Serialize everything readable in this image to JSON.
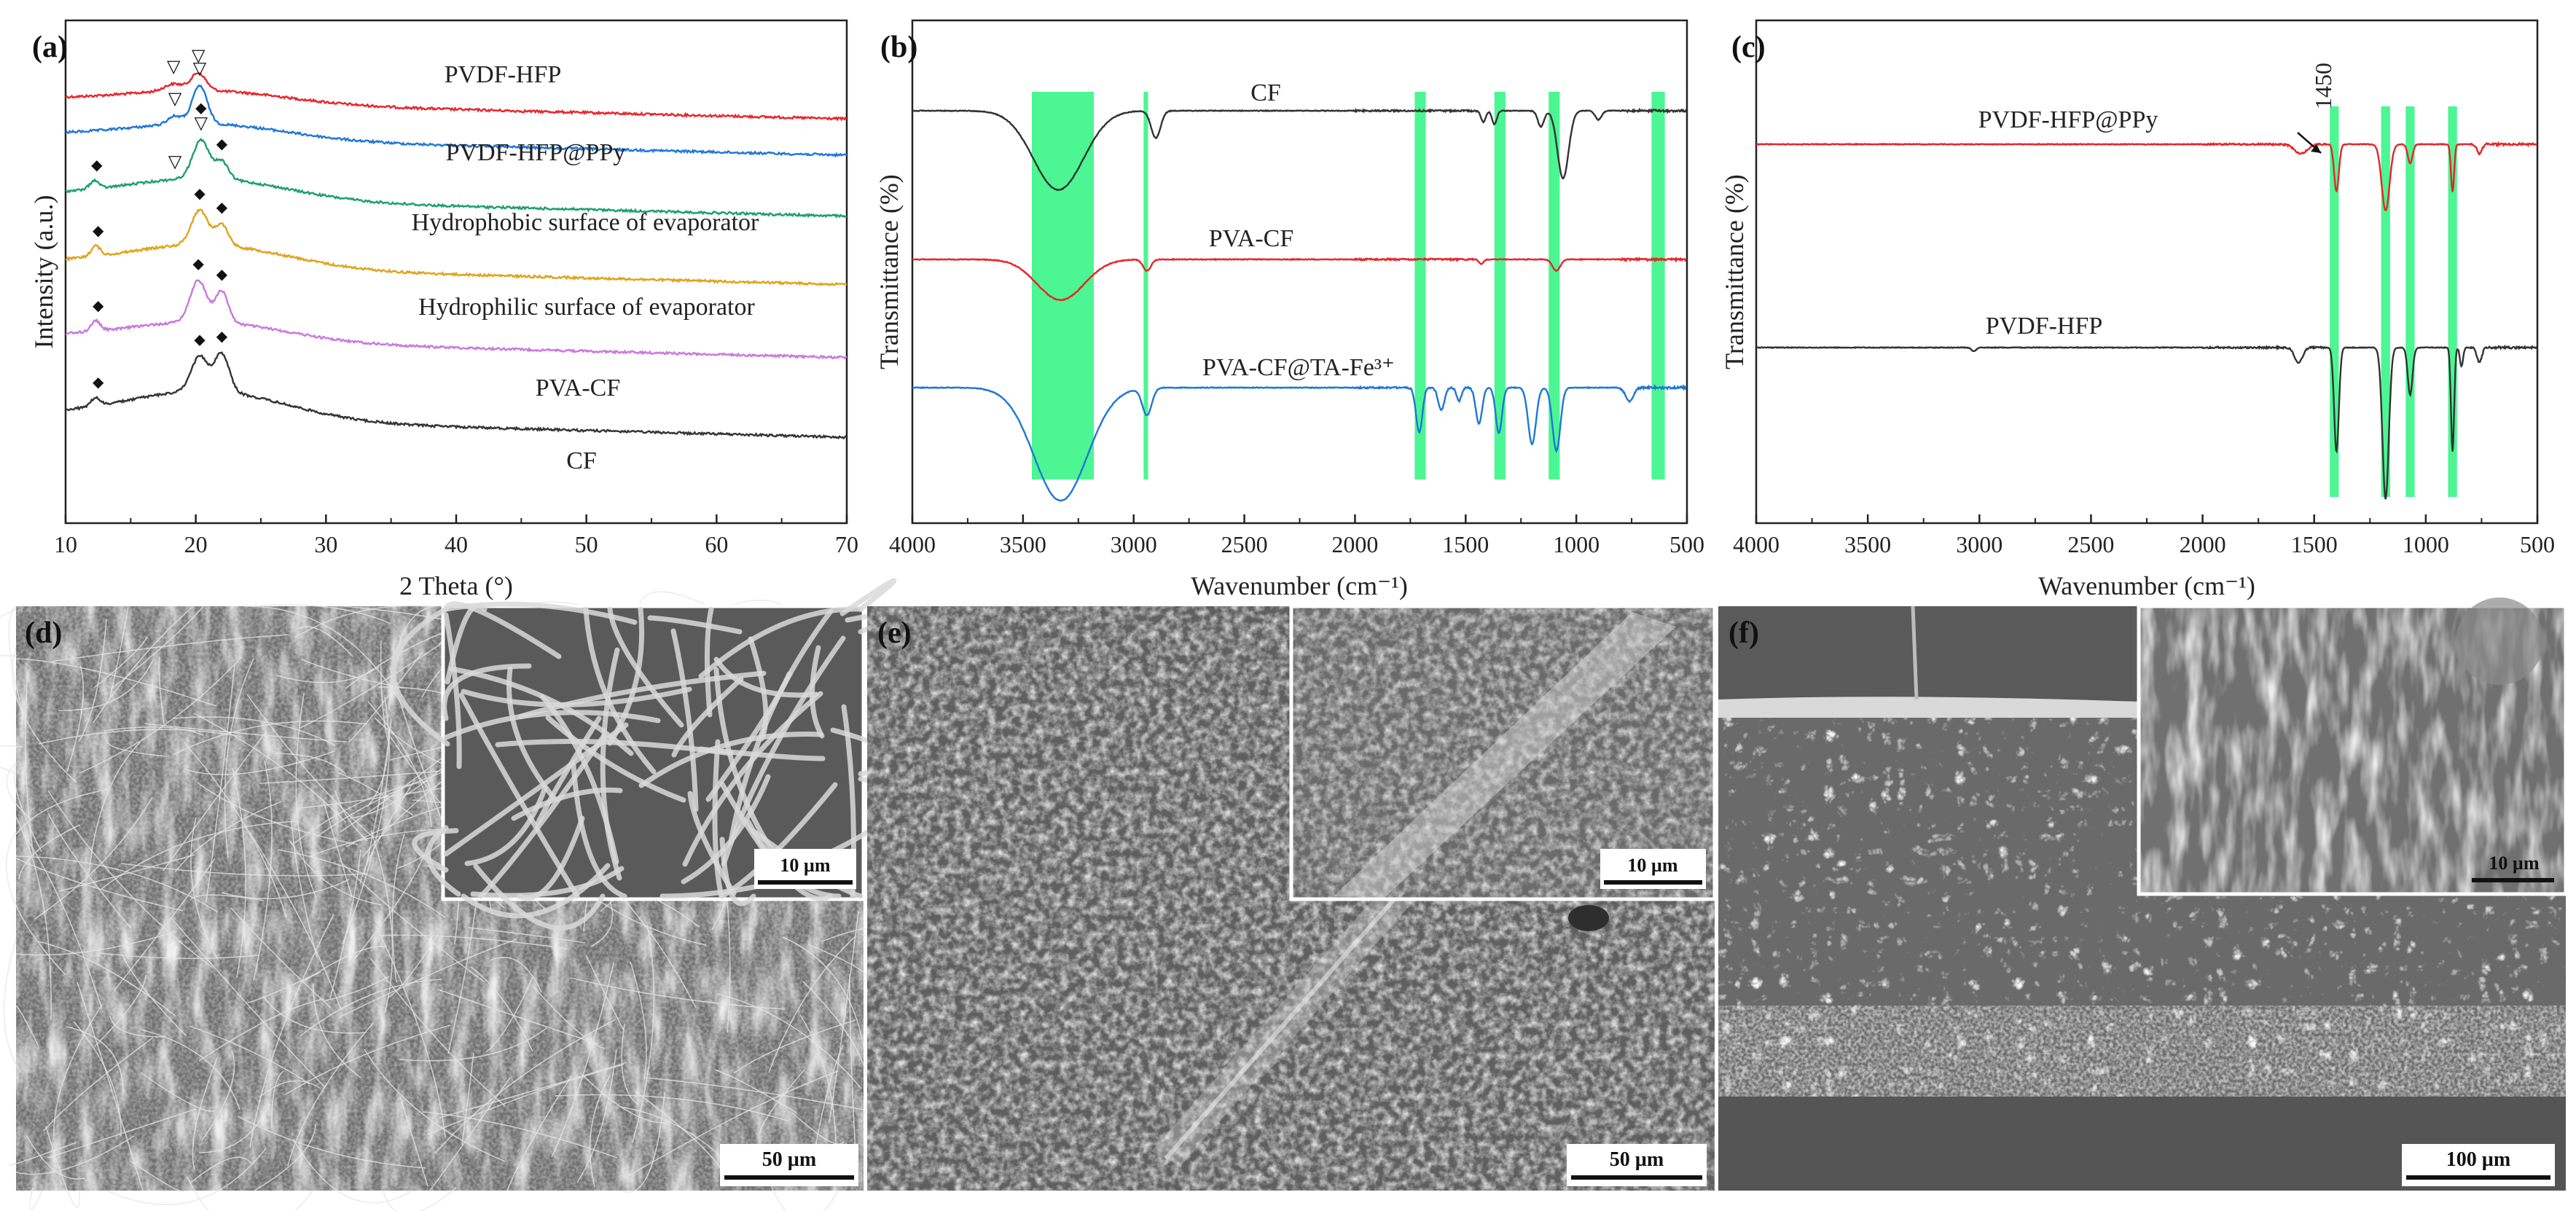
{
  "figure": {
    "colors": {
      "red": "#e8242a",
      "blue": "#1f77d6",
      "green": "#1aa06a",
      "orange": "#e0a21a",
      "violet": "#c978dd",
      "black": "#333333",
      "highlight": "#3df58a"
    }
  },
  "chart_data": [
    {
      "panel": "(a)",
      "type": "line",
      "xlabel": "2 Theta (°)",
      "ylabel": "Intensity (a.u.)",
      "xlim": [
        10,
        70
      ],
      "xticks": [
        "10",
        "20",
        "30",
        "40",
        "50",
        "60",
        "70"
      ],
      "grid": false,
      "series": [
        {
          "name": "PVDF-HFP",
          "color": "#e8242a",
          "offset": 5.0,
          "peaks": [
            [
              18.3,
              0.1,
              1.0
            ],
            [
              20.2,
              0.25,
              0.8
            ]
          ],
          "hump": 0.33,
          "tail": 0.0,
          "markers": [
            {
              "symbol": "▽",
              "x": 18.3
            },
            {
              "symbol": "▽",
              "x": 20.2
            }
          ]
        },
        {
          "name": "PVDF-HFP@PPy",
          "color": "#1f77d6",
          "offset": 4.0,
          "peaks": [
            [
              18.4,
              0.12,
              0.8
            ],
            [
              20.3,
              0.55,
              0.8
            ]
          ],
          "hump": 0.4,
          "tail": 0.0,
          "markers": [
            {
              "symbol": "▽",
              "x": 18.4
            },
            {
              "symbol": "▽",
              "x": 20.3
            }
          ]
        },
        {
          "name": "Hydrophobic surface of evaporator",
          "color": "#1aa06a",
          "offset": 3.0,
          "peaks": [
            [
              12.2,
              0.12,
              0.5
            ],
            [
              20.4,
              0.55,
              0.9
            ],
            [
              22.0,
              0.25,
              0.7
            ]
          ],
          "hump": 0.55,
          "tail": 0.0,
          "markers": [
            {
              "symbol": "◆",
              "x": 12.4
            },
            {
              "symbol": "▽",
              "x": 18.4
            },
            {
              "symbol": "▽",
              "x": 20.4
            },
            {
              "symbol": "◆",
              "x": 20.4
            },
            {
              "symbol": "◆",
              "x": 22.0
            }
          ]
        },
        {
          "name": "Hydrophilic surface of evaporator",
          "color": "#e0a21a",
          "offset": 2.0,
          "peaks": [
            [
              12.3,
              0.15,
              0.5
            ],
            [
              20.3,
              0.5,
              0.9
            ],
            [
              22.0,
              0.3,
              0.7
            ]
          ],
          "hump": 0.6,
          "tail": 0.0,
          "markers": [
            {
              "symbol": "◆",
              "x": 12.5
            },
            {
              "symbol": "◆",
              "x": 20.3
            },
            {
              "symbol": "◆",
              "x": 22.0
            }
          ]
        },
        {
          "name": "PVA-CF",
          "color": "#c978dd",
          "offset": 1.0,
          "peaks": [
            [
              12.3,
              0.15,
              0.5
            ],
            [
              20.2,
              0.6,
              0.9
            ],
            [
              22.0,
              0.45,
              0.7
            ]
          ],
          "hump": 0.5,
          "tail": 0.0,
          "markers": [
            {
              "symbol": "◆",
              "x": 12.5
            },
            {
              "symbol": "◆",
              "x": 20.2
            },
            {
              "symbol": "◆",
              "x": 22.0
            }
          ]
        },
        {
          "name": "CF",
          "color": "#333333",
          "offset": 0.0,
          "peaks": [
            [
              12.3,
              0.12,
              0.5
            ],
            [
              20.3,
              0.5,
              0.9
            ],
            [
              22.0,
              0.55,
              0.8
            ]
          ],
          "hump": 0.75,
          "tail": 0.0,
          "markers": [
            {
              "symbol": "◆",
              "x": 12.5
            },
            {
              "symbol": "◆",
              "x": 20.3
            },
            {
              "symbol": "◆",
              "x": 22.0
            }
          ]
        }
      ]
    },
    {
      "panel": "(b)",
      "type": "line",
      "xlabel": "Wavenumber (cm⁻¹)",
      "ylabel": "Transmittance (%)",
      "xlim": [
        4000,
        500
      ],
      "xticks": [
        "4000",
        "3500",
        "3000",
        "2500",
        "2000",
        "1500",
        "1000",
        "500"
      ],
      "highlight_bands": [
        [
          3460,
          3180
        ],
        [
          2955,
          2935
        ],
        [
          1730,
          1680
        ],
        [
          1370,
          1320
        ],
        [
          1125,
          1075
        ],
        [
          660,
          600
        ]
      ],
      "series": [
        {
          "name": "CF",
          "color": "#333333",
          "offset": 2.0,
          "bands": [
            [
              3340,
              0.35,
              160
            ],
            [
              2900,
              0.12,
              30
            ],
            [
              1420,
              0.05,
              15
            ],
            [
              1370,
              0.06,
              15
            ],
            [
              1160,
              0.07,
              20
            ],
            [
              1060,
              0.3,
              35
            ],
            [
              900,
              0.04,
              20
            ]
          ]
        },
        {
          "name": "PVA-CF",
          "color": "#e8242a",
          "offset": 1.0,
          "bands": [
            [
              3330,
              0.18,
              150
            ],
            [
              2940,
              0.05,
              25
            ],
            [
              1430,
              0.02,
              15
            ],
            [
              1090,
              0.05,
              25
            ]
          ]
        },
        {
          "name": "PVA-CF@TA-Fe³⁺",
          "color": "#1f77d6",
          "offset": 0.0,
          "bands": [
            [
              3330,
              0.5,
              170
            ],
            [
              2940,
              0.12,
              30
            ],
            [
              1710,
              0.2,
              20
            ],
            [
              1610,
              0.1,
              20
            ],
            [
              1530,
              0.06,
              15
            ],
            [
              1440,
              0.16,
              20
            ],
            [
              1350,
              0.2,
              20
            ],
            [
              1200,
              0.25,
              25
            ],
            [
              1090,
              0.28,
              25
            ],
            [
              760,
              0.06,
              25
            ]
          ]
        }
      ]
    },
    {
      "panel": "(c)",
      "type": "line",
      "xlabel": "Wavenumber (cm⁻¹)",
      "ylabel": "Transmittance (%)",
      "xlim": [
        4000,
        500
      ],
      "xticks": [
        "4000",
        "3500",
        "3000",
        "2500",
        "2000",
        "1500",
        "1000",
        "500"
      ],
      "highlight_bands": [
        [
          1430,
          1390
        ],
        [
          1200,
          1160
        ],
        [
          1090,
          1050
        ],
        [
          900,
          860
        ]
      ],
      "annotation": {
        "text": "1450",
        "x": 1450
      },
      "series": [
        {
          "name": "PVDF-HFP@PPy",
          "color": "#e8242a",
          "offset": 1.0,
          "bands": [
            [
              1560,
              0.05,
              40
            ],
            [
              1400,
              0.25,
              15
            ],
            [
              1180,
              0.35,
              25
            ],
            [
              1070,
              0.1,
              15
            ],
            [
              880,
              0.25,
              10
            ],
            [
              760,
              0.05,
              15
            ]
          ]
        },
        {
          "name": "PVDF-HFP",
          "color": "#333333",
          "offset": 0.0,
          "bands": [
            [
              3025,
              0.02,
              15
            ],
            [
              1570,
              0.08,
              25
            ],
            [
              1400,
              0.55,
              15
            ],
            [
              1180,
              0.8,
              20
            ],
            [
              1070,
              0.25,
              15
            ],
            [
              880,
              0.55,
              10
            ],
            [
              840,
              0.1,
              10
            ],
            [
              760,
              0.08,
              15
            ]
          ]
        }
      ]
    }
  ],
  "panels_images": [
    {
      "label": "(d)",
      "scale_main": "50 µm",
      "scale_inset": "10 µm"
    },
    {
      "label": "(e)",
      "scale_main": "50 µm",
      "scale_inset": "10 µm"
    },
    {
      "label": "(f)",
      "scale_main": "100 µm",
      "scale_inset": "10 µm"
    }
  ]
}
